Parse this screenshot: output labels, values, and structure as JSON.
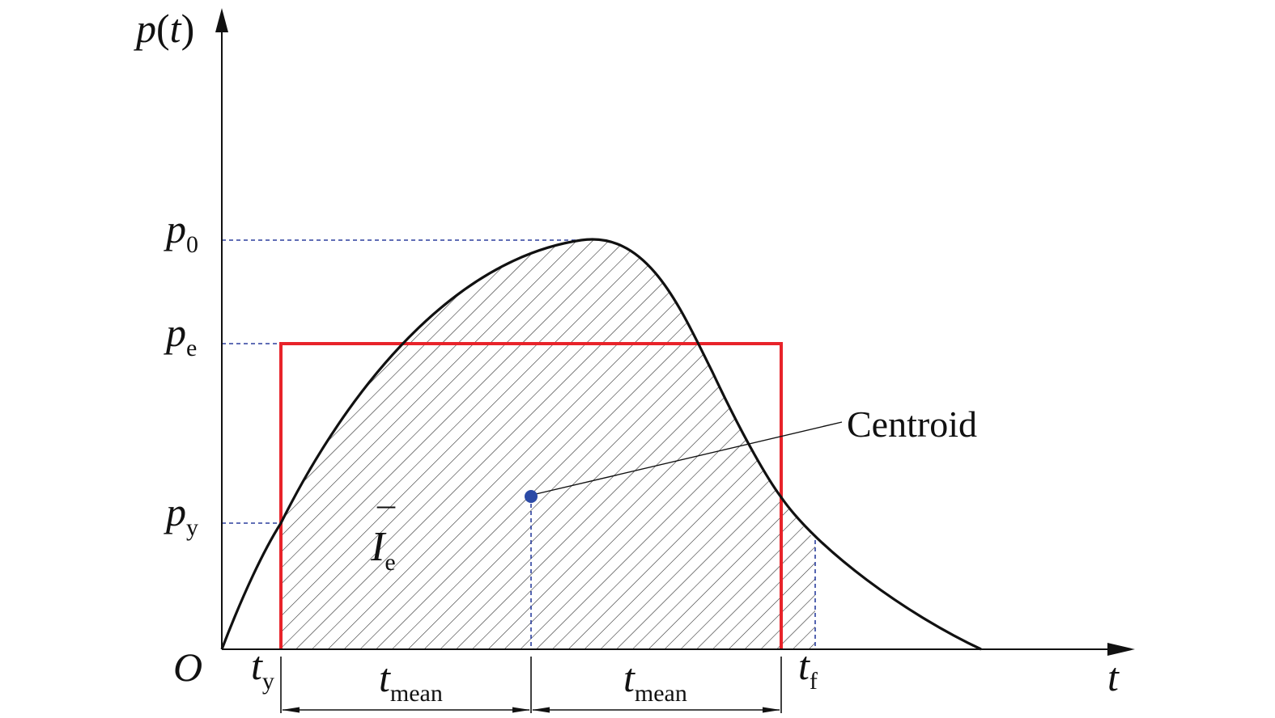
{
  "axes": {
    "y_label_main": "p",
    "y_label_paren_open": "(",
    "y_label_var": "t",
    "y_label_paren_close": ")",
    "x_label": "t",
    "origin_label": "O"
  },
  "y_ticks": [
    {
      "main": "p",
      "sub": "0"
    },
    {
      "main": "p",
      "sub": "e"
    },
    {
      "main": "p",
      "sub": "y"
    }
  ],
  "x_ticks": [
    {
      "main": "t",
      "sub": "y"
    },
    {
      "main": "t",
      "sub": "f"
    }
  ],
  "intervals": [
    {
      "main": "t",
      "sub": "mean"
    },
    {
      "main": "t",
      "sub": "mean"
    }
  ],
  "area_label": {
    "main": "I",
    "bar": "¯",
    "sub": "e"
  },
  "annotation": {
    "text": "Centroid"
  },
  "colors": {
    "curve": "#111111",
    "rectangle": "#e8232a",
    "guides": "#2b3f9e",
    "centroid": "#2b4aa6",
    "hatch": "#222222"
  }
}
